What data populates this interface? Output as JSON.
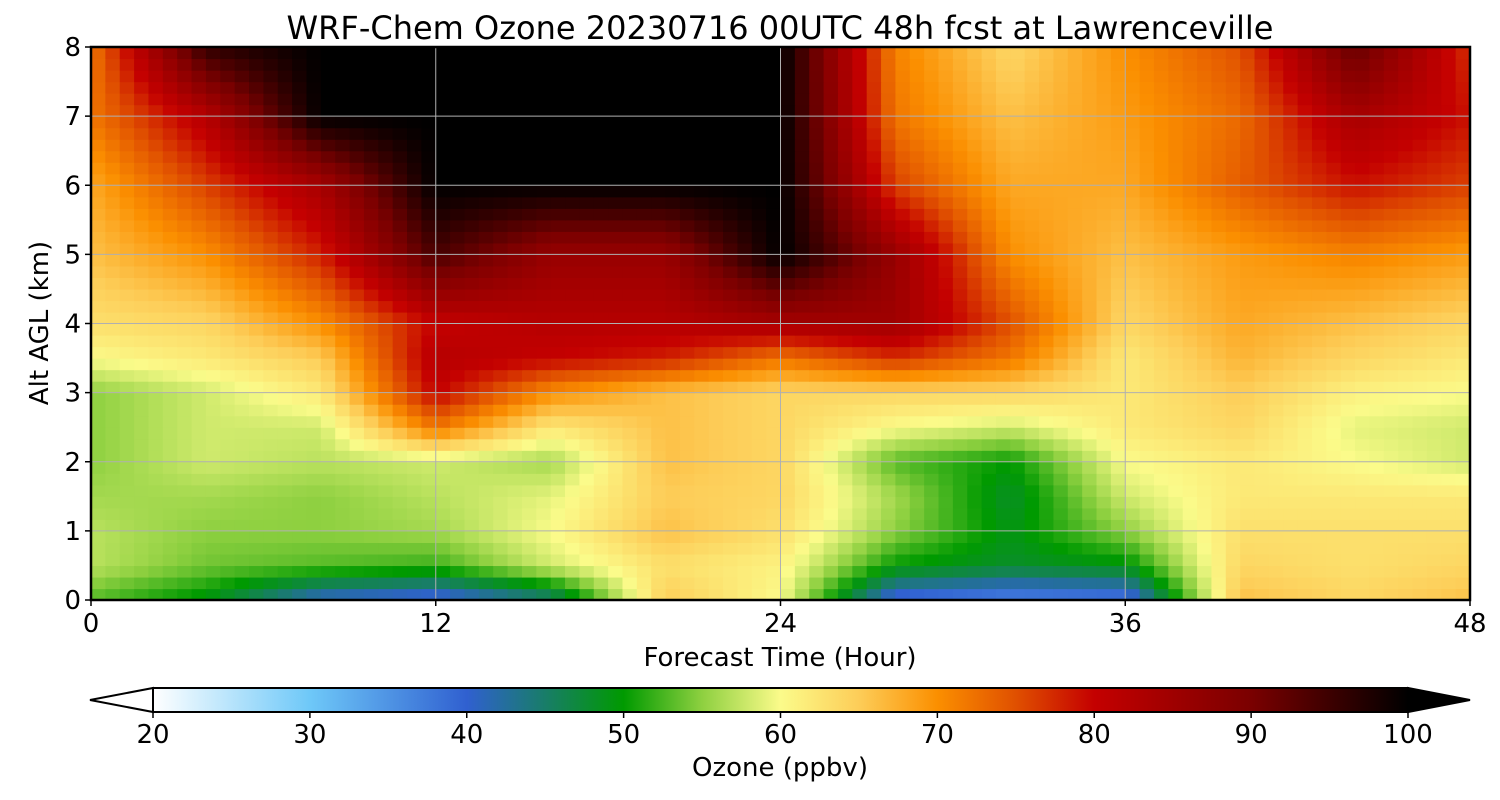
{
  "chart_data": {
    "type": "heatmap",
    "title": "WRF-Chem Ozone  20230716 00UTC 48h fcst at Lawrenceville",
    "xlabel": "Forecast Time (Hour)",
    "ylabel": "Alt AGL (km)",
    "xlim": [
      0,
      48
    ],
    "ylim": [
      0,
      8
    ],
    "x_ticks": [
      "0",
      "12",
      "24",
      "36",
      "48"
    ],
    "y_ticks": [
      "0",
      "1",
      "2",
      "3",
      "4",
      "5",
      "6",
      "7",
      "8"
    ],
    "grid": true,
    "colorbar": {
      "label": "Ozone  (ppbv)",
      "range": [
        20,
        100
      ],
      "extend": "both",
      "ticks": [
        "20",
        "30",
        "40",
        "50",
        "60",
        "70",
        "80",
        "90",
        "100"
      ],
      "stops": [
        {
          "value": 20,
          "color": "#ffffff"
        },
        {
          "value": 30,
          "color": "#6ec8f8"
        },
        {
          "value": 40,
          "color": "#3060d0"
        },
        {
          "value": 50,
          "color": "#009a00"
        },
        {
          "value": 55,
          "color": "#8ed040"
        },
        {
          "value": 60,
          "color": "#fbfb8a"
        },
        {
          "value": 65,
          "color": "#fdcd58"
        },
        {
          "value": 70,
          "color": "#fb8f00"
        },
        {
          "value": 75,
          "color": "#e05000"
        },
        {
          "value": 80,
          "color": "#c40000"
        },
        {
          "value": 90,
          "color": "#7a0000"
        },
        {
          "value": 100,
          "color": "#000000"
        }
      ]
    },
    "hours": [
      0,
      4,
      8,
      12,
      16,
      20,
      24,
      28,
      32,
      36,
      40,
      44,
      48
    ],
    "altitudes_km": [
      0,
      0.5,
      1,
      1.5,
      2,
      2.5,
      3,
      3.5,
      4,
      5,
      6,
      7,
      8
    ],
    "values": [
      [
        53,
        49,
        40,
        38,
        44,
        65,
        60,
        38,
        36,
        37,
        66,
        64,
        66
      ],
      [
        57,
        54,
        53,
        52,
        58,
        63,
        61,
        50,
        48,
        49,
        64,
        63,
        64
      ],
      [
        57,
        55,
        55,
        56,
        60,
        66,
        63,
        55,
        49,
        55,
        63,
        63,
        63
      ],
      [
        56,
        56,
        55,
        57,
        59,
        65,
        64,
        56,
        48,
        58,
        62,
        62,
        62
      ],
      [
        55,
        58,
        57,
        58,
        56,
        66,
        64,
        53,
        50,
        60,
        62,
        60,
        58
      ],
      [
        55,
        58,
        58,
        72,
        62,
        66,
        64,
        60,
        58,
        62,
        64,
        59,
        58
      ],
      [
        55,
        58,
        62,
        80,
        70,
        66,
        64,
        64,
        64,
        62,
        65,
        61,
        60
      ],
      [
        60,
        62,
        65,
        82,
        80,
        78,
        72,
        77,
        72,
        62,
        67,
        64,
        62
      ],
      [
        63,
        64,
        70,
        80,
        82,
        82,
        84,
        85,
        75,
        64,
        68,
        66,
        64
      ],
      [
        66,
        70,
        78,
        94,
        86,
        86,
        100,
        86,
        70,
        66,
        69,
        71,
        69
      ],
      [
        68,
        76,
        84,
        100,
        100,
        100,
        100,
        76,
        68,
        68,
        74,
        79,
        76
      ],
      [
        72,
        82,
        100,
        100,
        100,
        100,
        100,
        72,
        66,
        69,
        73,
        84,
        79
      ],
      [
        72,
        96,
        100,
        100,
        100,
        100,
        100,
        71,
        64,
        70,
        75,
        92,
        77
      ]
    ]
  }
}
